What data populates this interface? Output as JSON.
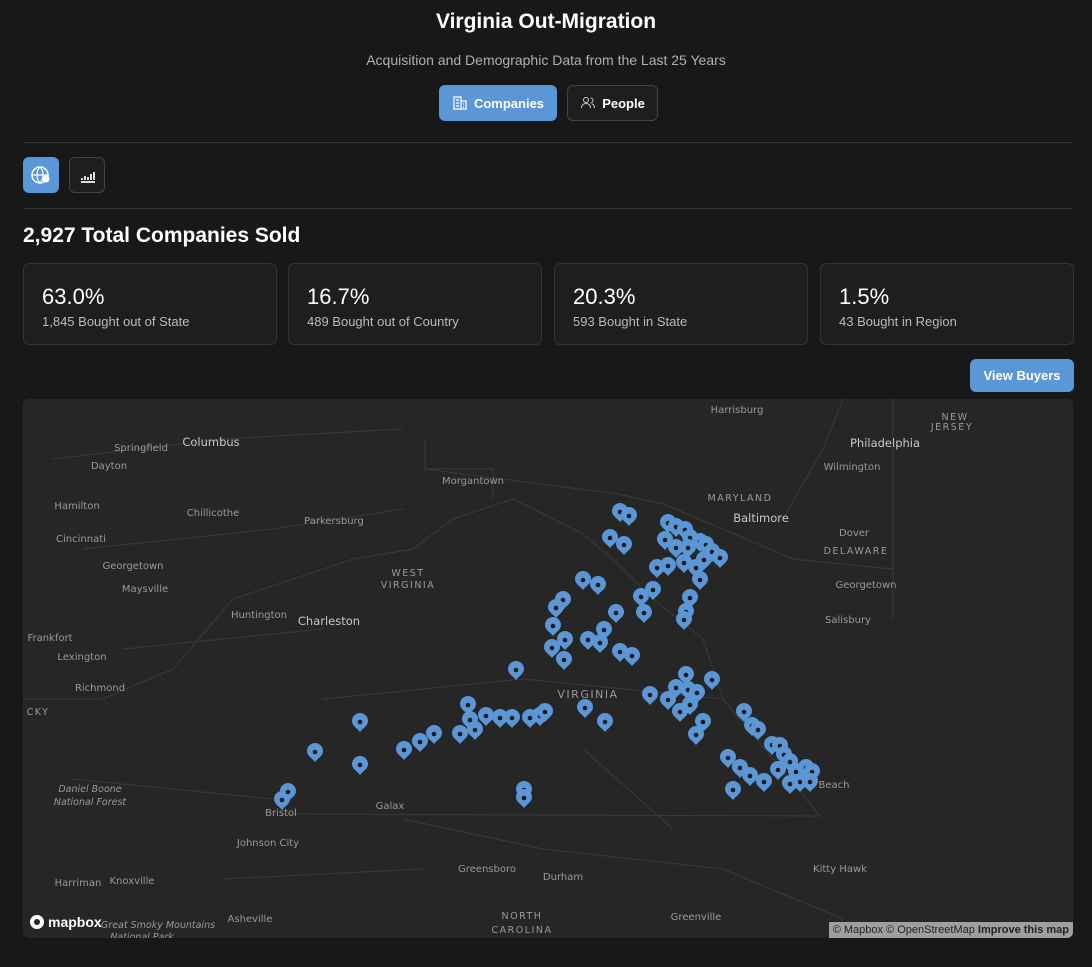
{
  "header": {
    "title": "Virginia Out-Migration",
    "subtitle": "Acquisition and Demographic Data from the Last 25 Years"
  },
  "tabs": [
    {
      "label": "Companies"
    },
    {
      "label": "People"
    }
  ],
  "summary": {
    "heading": "2,927 Total Companies Sold"
  },
  "stats": [
    {
      "value": "63.0%",
      "label": "1,845 Bought out of State"
    },
    {
      "value": "16.7%",
      "label": "489 Bought out of Country"
    },
    {
      "value": "20.3%",
      "label": "593 Bought in State"
    },
    {
      "value": "1.5%",
      "label": "43 Bought in Region"
    }
  ],
  "actions": {
    "view_buyers": "View Buyers"
  },
  "map": {
    "labels": [
      "Harrisburg",
      "Philadelphia",
      "NEW",
      "JERSEY",
      "Columbus",
      "Springfield",
      "Dayton",
      "Wilmington",
      "Morgantown",
      "MARYLAND",
      "Hamilton",
      "Chillicothe",
      "Parkersburg",
      "Baltimore",
      "Dover",
      "Cincinnati",
      "DELAWARE",
      "Georgetown",
      "WEST",
      "VIRGINIA",
      "Georgetown",
      "Maysville",
      "Huntington",
      "Charleston",
      "Salisbury",
      "Frankfort",
      "Lexington",
      "Richmond",
      "VIRGINIA",
      "CKY",
      "Beach",
      "Daniel Boone",
      "National Forest",
      "Galax",
      "Bristol",
      "Johnson City",
      "Kitty Hawk",
      "Greensboro",
      "Durham",
      "Harriman",
      "Knoxville",
      "NORTH",
      "CAROLINA",
      "Greenville",
      "Asheville",
      "Great Smoky Mountains",
      "National Park"
    ],
    "logo": "mapbox",
    "attribution": [
      "© Mapbox © OpenStreetMap",
      "Improve this map"
    ]
  }
}
